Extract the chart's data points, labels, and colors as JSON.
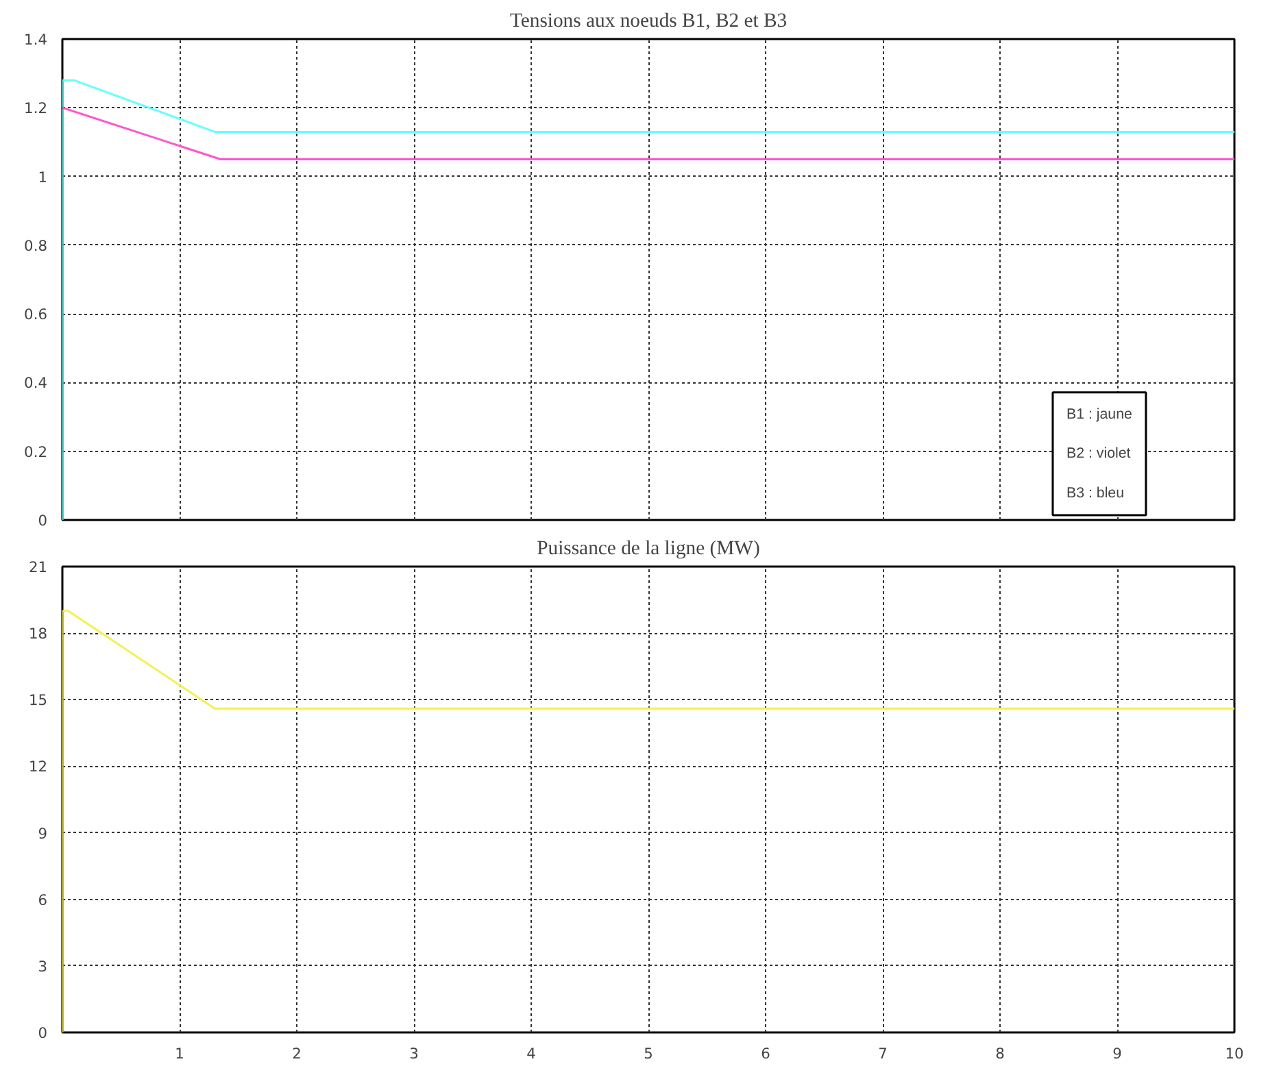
{
  "chart_data": [
    {
      "type": "line",
      "title": "Tensions aux noeuds B1, B2 et B3",
      "xlim": [
        0,
        10
      ],
      "ylim": [
        0,
        1.4
      ],
      "xticks": [
        1,
        2,
        3,
        4,
        5,
        6,
        7,
        8,
        9,
        10
      ],
      "yticks": [
        0,
        0.2,
        0.4,
        0.6,
        0.8,
        1,
        1.2,
        1.4
      ],
      "grid": true,
      "tick_labels": "y",
      "line_style": "solid",
      "series": [
        {
          "color": "#66ffff",
          "x": [
            0,
            0,
            0.1,
            1.3,
            10
          ],
          "values": [
            0,
            1.28,
            1.28,
            1.13,
            1.13
          ]
        },
        {
          "color": "#ff55cc",
          "x": [
            0,
            1.35,
            10
          ],
          "values": [
            1.2,
            1.05,
            1.05
          ]
        }
      ],
      "annotations": [
        "B1 : jaune",
        "B2 : violet",
        "B3 : bleu"
      ]
    },
    {
      "type": "line",
      "title": "Puissance de la ligne (MW)",
      "xlim": [
        0,
        10
      ],
      "ylim": [
        0,
        21
      ],
      "xticks": [
        1,
        2,
        3,
        4,
        5,
        6,
        7,
        8,
        9,
        10
      ],
      "yticks": [
        0,
        3,
        6,
        9,
        12,
        15,
        18,
        21
      ],
      "grid": true,
      "line_style": "solid",
      "series": [
        {
          "color": "#f5f050",
          "x": [
            0,
            0,
            0.05,
            1.3,
            10
          ],
          "values": [
            0,
            19,
            19,
            14.6,
            14.6
          ]
        }
      ]
    }
  ]
}
